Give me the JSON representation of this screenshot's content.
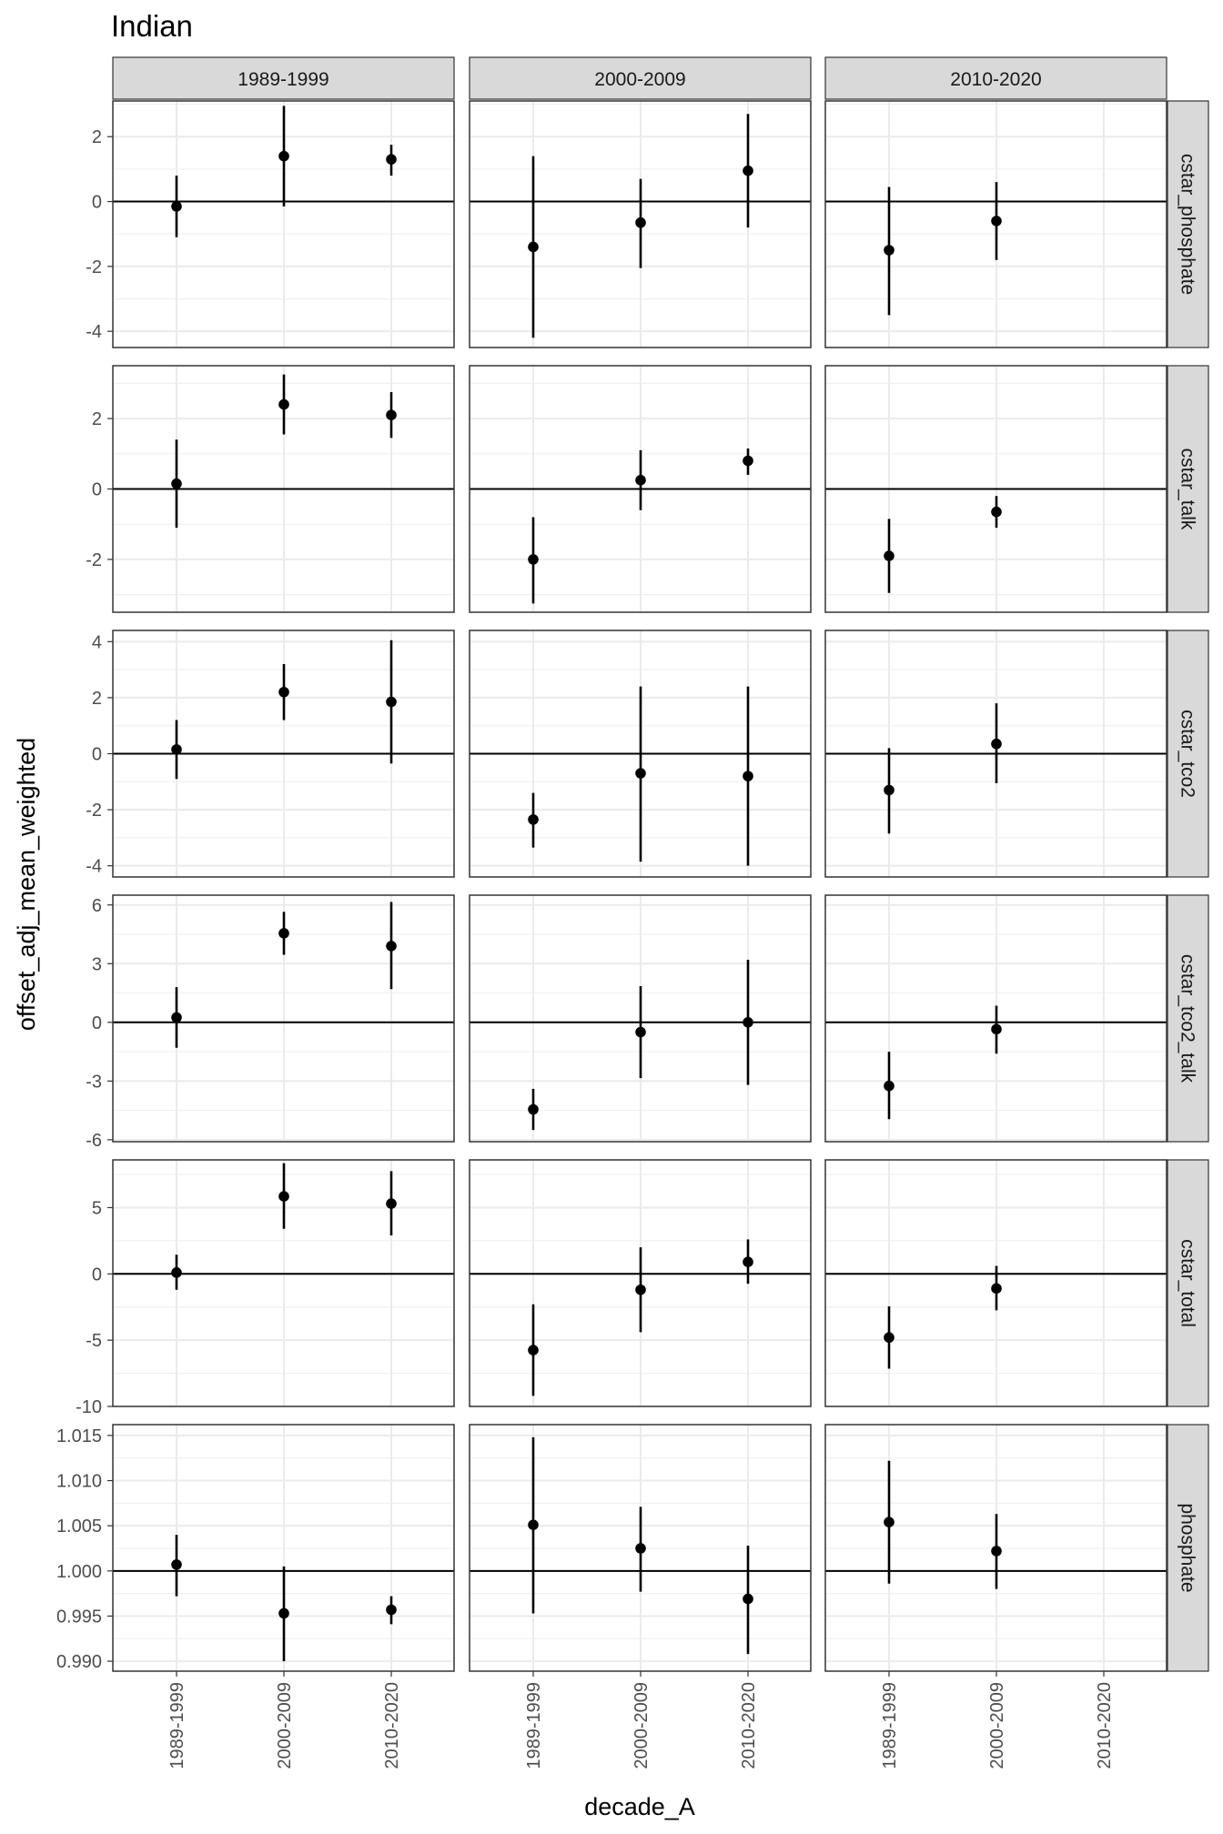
{
  "chart_data": {
    "type": "scatter",
    "title": "Indian",
    "xlabel": "decade_A",
    "ylabel": "offset_adj_mean_weighted",
    "x_categories": [
      "1989-1999",
      "2000-2009",
      "2010-2020"
    ],
    "column_facets": [
      "1989-1999",
      "2000-2009",
      "2010-2020"
    ],
    "grid": true,
    "reference_line": {
      "y_default": 0,
      "y_phosphate": 1.0
    },
    "rows": [
      {
        "name": "cstar_phosphate",
        "ylim": [
          -4.5,
          3.1
        ],
        "yticks": [
          2,
          0,
          -2,
          -4
        ],
        "tick_labels": [
          "2",
          "0",
          "-2",
          "-4"
        ],
        "panels": [
          [
            {
              "x": "1989-1999",
              "y": -0.15,
              "lo": -1.1,
              "hi": 0.8
            },
            {
              "x": "2000-2009",
              "y": 1.4,
              "lo": -0.15,
              "hi": 2.95
            },
            {
              "x": "2010-2020",
              "y": 1.3,
              "lo": 0.8,
              "hi": 1.75
            }
          ],
          [
            {
              "x": "1989-1999",
              "y": -1.4,
              "lo": -4.2,
              "hi": 1.4
            },
            {
              "x": "2000-2009",
              "y": -0.65,
              "lo": -2.05,
              "hi": 0.7
            },
            {
              "x": "2010-2020",
              "y": 0.95,
              "lo": -0.8,
              "hi": 2.7
            }
          ],
          [
            {
              "x": "1989-1999",
              "y": -1.5,
              "lo": -3.5,
              "hi": 0.45
            },
            {
              "x": "2000-2009",
              "y": -0.6,
              "lo": -1.8,
              "hi": 0.6
            }
          ]
        ]
      },
      {
        "name": "cstar_talk",
        "ylim": [
          -3.5,
          3.5
        ],
        "yticks": [
          2,
          0,
          -2
        ],
        "tick_labels": [
          "2",
          "0",
          "-2"
        ],
        "panels": [
          [
            {
              "x": "1989-1999",
              "y": 0.15,
              "lo": -1.1,
              "hi": 1.4
            },
            {
              "x": "2000-2009",
              "y": 2.4,
              "lo": 1.55,
              "hi": 3.25
            },
            {
              "x": "2010-2020",
              "y": 2.1,
              "lo": 1.45,
              "hi": 2.75
            }
          ],
          [
            {
              "x": "1989-1999",
              "y": -2.0,
              "lo": -3.25,
              "hi": -0.8
            },
            {
              "x": "2000-2009",
              "y": 0.25,
              "lo": -0.6,
              "hi": 1.1
            },
            {
              "x": "2010-2020",
              "y": 0.8,
              "lo": 0.4,
              "hi": 1.15
            }
          ],
          [
            {
              "x": "1989-1999",
              "y": -1.9,
              "lo": -2.95,
              "hi": -0.85
            },
            {
              "x": "2000-2009",
              "y": -0.65,
              "lo": -1.1,
              "hi": -0.2
            }
          ]
        ]
      },
      {
        "name": "cstar_tco2",
        "ylim": [
          -4.4,
          4.4
        ],
        "yticks": [
          4,
          2,
          0,
          -2,
          -4
        ],
        "tick_labels": [
          "4",
          "2",
          "0",
          "-2",
          "-4"
        ],
        "panels": [
          [
            {
              "x": "1989-1999",
              "y": 0.15,
              "lo": -0.9,
              "hi": 1.2
            },
            {
              "x": "2000-2009",
              "y": 2.2,
              "lo": 1.2,
              "hi": 3.2
            },
            {
              "x": "2010-2020",
              "y": 1.85,
              "lo": -0.35,
              "hi": 4.05
            }
          ],
          [
            {
              "x": "1989-1999",
              "y": -2.35,
              "lo": -3.35,
              "hi": -1.4
            },
            {
              "x": "2000-2009",
              "y": -0.7,
              "lo": -3.85,
              "hi": 2.4
            },
            {
              "x": "2010-2020",
              "y": -0.8,
              "lo": -4.0,
              "hi": 2.4
            }
          ],
          [
            {
              "x": "1989-1999",
              "y": -1.3,
              "lo": -2.85,
              "hi": 0.2
            },
            {
              "x": "2000-2009",
              "y": 0.35,
              "lo": -1.05,
              "hi": 1.8
            }
          ]
        ]
      },
      {
        "name": "cstar_tco2_talk",
        "ylim": [
          -6.1,
          6.5
        ],
        "yticks": [
          6,
          3,
          0,
          -3,
          -6
        ],
        "tick_labels": [
          "6",
          "3",
          "0",
          "-3",
          "-6"
        ],
        "panels": [
          [
            {
              "x": "1989-1999",
              "y": 0.25,
              "lo": -1.3,
              "hi": 1.8
            },
            {
              "x": "2000-2009",
              "y": 4.55,
              "lo": 3.45,
              "hi": 5.65
            },
            {
              "x": "2010-2020",
              "y": 3.9,
              "lo": 1.7,
              "hi": 6.15
            }
          ],
          [
            {
              "x": "1989-1999",
              "y": -4.45,
              "lo": -5.5,
              "hi": -3.4
            },
            {
              "x": "2000-2009",
              "y": -0.5,
              "lo": -2.85,
              "hi": 1.85
            },
            {
              "x": "2010-2020",
              "y": 0.0,
              "lo": -3.2,
              "hi": 3.2
            }
          ],
          [
            {
              "x": "1989-1999",
              "y": -3.25,
              "lo": -4.95,
              "hi": -1.5
            },
            {
              "x": "2000-2009",
              "y": -0.35,
              "lo": -1.6,
              "hi": 0.85
            }
          ]
        ]
      },
      {
        "name": "cstar_total",
        "ylim": [
          -10,
          8.6
        ],
        "yticks": [
          5,
          0,
          -5,
          -10
        ],
        "tick_labels": [
          "5",
          "0",
          "-5",
          "-10"
        ],
        "panels": [
          [
            {
              "x": "1989-1999",
              "y": 0.1,
              "lo": -1.2,
              "hi": 1.45
            },
            {
              "x": "2000-2009",
              "y": 5.85,
              "lo": 3.4,
              "hi": 8.35
            },
            {
              "x": "2010-2020",
              "y": 5.3,
              "lo": 2.9,
              "hi": 7.75
            }
          ],
          [
            {
              "x": "1989-1999",
              "y": -5.75,
              "lo": -9.2,
              "hi": -2.3
            },
            {
              "x": "2000-2009",
              "y": -1.2,
              "lo": -4.4,
              "hi": 2.0
            },
            {
              "x": "2010-2020",
              "y": 0.9,
              "lo": -0.75,
              "hi": 2.6
            }
          ],
          [
            {
              "x": "1989-1999",
              "y": -4.8,
              "lo": -7.15,
              "hi": -2.45
            },
            {
              "x": "2000-2009",
              "y": -1.1,
              "lo": -2.75,
              "hi": 0.6
            }
          ]
        ]
      },
      {
        "name": "phosphate",
        "ylim": [
          0.9889,
          1.0162
        ],
        "yticks": [
          1.015,
          1.01,
          1.005,
          1.0,
          0.995,
          0.99
        ],
        "tick_labels": [
          "1.015",
          "1.010",
          "1.005",
          "1.000",
          "0.995",
          "0.990"
        ],
        "panels": [
          [
            {
              "x": "1989-1999",
              "y": 1.0007,
              "lo": 0.9972,
              "hi": 1.004
            },
            {
              "x": "2000-2009",
              "y": 0.9953,
              "lo": 0.99,
              "hi": 1.0005
            },
            {
              "x": "2010-2020",
              "y": 0.9957,
              "lo": 0.9941,
              "hi": 0.9972
            }
          ],
          [
            {
              "x": "1989-1999",
              "y": 1.0051,
              "lo": 0.9953,
              "hi": 1.0148
            },
            {
              "x": "2000-2009",
              "y": 1.0025,
              "lo": 0.9977,
              "hi": 1.0071
            },
            {
              "x": "2010-2020",
              "y": 0.9969,
              "lo": 0.9908,
              "hi": 1.0028
            }
          ],
          [
            {
              "x": "1989-1999",
              "y": 1.0054,
              "lo": 0.9986,
              "hi": 1.0122
            },
            {
              "x": "2000-2009",
              "y": 1.0022,
              "lo": 0.998,
              "hi": 1.0063
            }
          ]
        ]
      }
    ]
  }
}
